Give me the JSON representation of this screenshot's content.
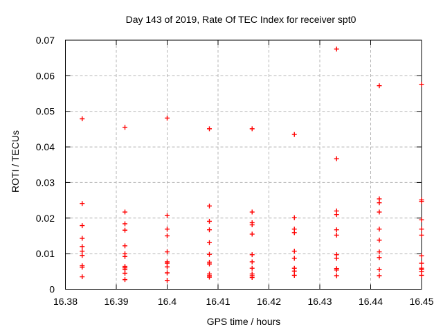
{
  "chart_data": {
    "type": "scatter",
    "title": "Day 143 of 2019, Rate Of TEC Index for receiver spt0",
    "xlabel": "GPS time / hours",
    "ylabel": "ROTI / TECUs",
    "xlim": [
      16.38,
      16.45
    ],
    "ylim": [
      0,
      0.07
    ],
    "xticks": [
      16.38,
      16.39,
      16.4,
      16.41,
      16.42,
      16.43,
      16.44,
      16.45
    ],
    "xtick_labels": [
      "16.38",
      "16.39",
      "16.4",
      "16.41",
      "16.42",
      "16.43",
      "16.44",
      "16.45"
    ],
    "yticks": [
      0,
      0.01,
      0.02,
      0.03,
      0.04,
      0.05,
      0.06,
      0.07
    ],
    "ytick_labels": [
      "0",
      "0.01",
      "0.02",
      "0.03",
      "0.04",
      "0.05",
      "0.06",
      "0.07"
    ],
    "grid": true,
    "legend": "none",
    "marker": "plus",
    "colors": {
      "marker": "#ff0000",
      "grid": "#b4b4b4",
      "axis": "#000000",
      "background": "#ffffff"
    },
    "series": [
      {
        "name": "ROTI",
        "points": [
          [
            16.3833,
            0.0479
          ],
          [
            16.3833,
            0.0241
          ],
          [
            16.3833,
            0.0179
          ],
          [
            16.3833,
            0.0143
          ],
          [
            16.3833,
            0.012
          ],
          [
            16.3833,
            0.0107
          ],
          [
            16.3833,
            0.0095
          ],
          [
            16.3833,
            0.0066
          ],
          [
            16.3833,
            0.0062
          ],
          [
            16.3833,
            0.0035
          ],
          [
            16.3917,
            0.0455
          ],
          [
            16.3917,
            0.0217
          ],
          [
            16.3917,
            0.0184
          ],
          [
            16.3917,
            0.0166
          ],
          [
            16.3917,
            0.0122
          ],
          [
            16.3917,
            0.01
          ],
          [
            16.3917,
            0.0092
          ],
          [
            16.3917,
            0.0064
          ],
          [
            16.3917,
            0.006
          ],
          [
            16.3917,
            0.0055
          ],
          [
            16.3917,
            0.0045
          ],
          [
            16.3917,
            0.0027
          ],
          [
            16.4,
            0.0481
          ],
          [
            16.4,
            0.0207
          ],
          [
            16.4,
            0.0169
          ],
          [
            16.4,
            0.015
          ],
          [
            16.4,
            0.0105
          ],
          [
            16.4,
            0.0077
          ],
          [
            16.4,
            0.0073
          ],
          [
            16.4,
            0.0063
          ],
          [
            16.4,
            0.0046
          ],
          [
            16.4,
            0.0025
          ],
          [
            16.4083,
            0.0451
          ],
          [
            16.4083,
            0.0234
          ],
          [
            16.4083,
            0.0191
          ],
          [
            16.4083,
            0.0167
          ],
          [
            16.4083,
            0.0131
          ],
          [
            16.4083,
            0.0098
          ],
          [
            16.4083,
            0.0076
          ],
          [
            16.4083,
            0.0071
          ],
          [
            16.4083,
            0.0043
          ],
          [
            16.4083,
            0.0038
          ],
          [
            16.4083,
            0.0034
          ],
          [
            16.4167,
            0.0451
          ],
          [
            16.4167,
            0.0217
          ],
          [
            16.4167,
            0.0187
          ],
          [
            16.4167,
            0.0181
          ],
          [
            16.4167,
            0.0155
          ],
          [
            16.4167,
            0.0097
          ],
          [
            16.4167,
            0.0077
          ],
          [
            16.4167,
            0.0059
          ],
          [
            16.4167,
            0.0043
          ],
          [
            16.4167,
            0.0038
          ],
          [
            16.4167,
            0.0033
          ],
          [
            16.425,
            0.0435
          ],
          [
            16.425,
            0.0201
          ],
          [
            16.425,
            0.0169
          ],
          [
            16.425,
            0.0159
          ],
          [
            16.425,
            0.0107
          ],
          [
            16.425,
            0.0087
          ],
          [
            16.425,
            0.0059
          ],
          [
            16.425,
            0.0051
          ],
          [
            16.425,
            0.0039
          ],
          [
            16.4333,
            0.0675
          ],
          [
            16.4333,
            0.0367
          ],
          [
            16.4333,
            0.022
          ],
          [
            16.4333,
            0.021
          ],
          [
            16.4333,
            0.0167
          ],
          [
            16.4333,
            0.0152
          ],
          [
            16.4333,
            0.0097
          ],
          [
            16.4333,
            0.0087
          ],
          [
            16.4333,
            0.0058
          ],
          [
            16.4333,
            0.0054
          ],
          [
            16.4333,
            0.0038
          ],
          [
            16.4417,
            0.0572
          ],
          [
            16.4417,
            0.0254
          ],
          [
            16.4417,
            0.0243
          ],
          [
            16.4417,
            0.0217
          ],
          [
            16.4417,
            0.0169
          ],
          [
            16.4417,
            0.0138
          ],
          [
            16.4417,
            0.0105
          ],
          [
            16.4417,
            0.0089
          ],
          [
            16.4417,
            0.0055
          ],
          [
            16.4417,
            0.0038
          ],
          [
            16.45,
            0.0576
          ],
          [
            16.45,
            0.0251
          ],
          [
            16.45,
            0.0247
          ],
          [
            16.45,
            0.0195
          ],
          [
            16.45,
            0.0169
          ],
          [
            16.45,
            0.0152
          ],
          [
            16.45,
            0.0094
          ],
          [
            16.45,
            0.0073
          ],
          [
            16.45,
            0.0059
          ],
          [
            16.45,
            0.0055
          ],
          [
            16.45,
            0.005
          ],
          [
            16.45,
            0.0039
          ]
        ]
      }
    ]
  }
}
